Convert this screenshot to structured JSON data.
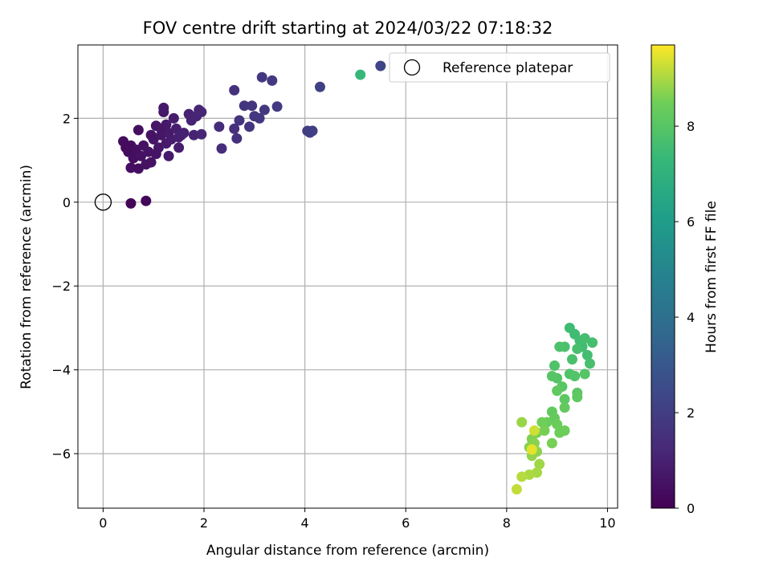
{
  "chart_data": {
    "type": "scatter",
    "title": "FOV centre drift starting at 2024/03/22 07:18:32",
    "xlabel": "Angular distance from reference (arcmin)",
    "ylabel": "Rotation from reference (arcmin)",
    "xlim": [
      -0.5,
      10.2
    ],
    "ylim": [
      -7.3,
      3.75
    ],
    "x_ticks": [
      0,
      2,
      4,
      6,
      8,
      10
    ],
    "y_ticks": [
      -6,
      -4,
      -2,
      0,
      2
    ],
    "grid": true,
    "legend": {
      "entries": [
        "Reference platepar"
      ],
      "placement": "top-right"
    },
    "colorbar": {
      "label": "Hours from first FF file",
      "colormap": "viridis",
      "range": [
        0,
        9.7
      ],
      "ticks": [
        0,
        2,
        4,
        6,
        8
      ]
    },
    "reference_point": {
      "x": 0,
      "y": 0
    },
    "series": [
      {
        "points": [
          {
            "x": 0.55,
            "y": -0.03,
            "c": 0.1
          },
          {
            "x": 0.85,
            "y": 0.03,
            "c": 0.15
          },
          {
            "x": 0.4,
            "y": 1.45,
            "c": 0.3
          },
          {
            "x": 0.45,
            "y": 1.3,
            "c": 0.3
          },
          {
            "x": 0.5,
            "y": 1.2,
            "c": 0.35
          },
          {
            "x": 0.55,
            "y": 1.35,
            "c": 0.35
          },
          {
            "x": 0.6,
            "y": 1.05,
            "c": 0.4
          },
          {
            "x": 0.65,
            "y": 1.25,
            "c": 0.4
          },
          {
            "x": 0.55,
            "y": 0.82,
            "c": 0.4
          },
          {
            "x": 0.7,
            "y": 0.8,
            "c": 0.45
          },
          {
            "x": 0.7,
            "y": 1.72,
            "c": 0.45
          },
          {
            "x": 0.75,
            "y": 1.1,
            "c": 0.5
          },
          {
            "x": 0.8,
            "y": 1.35,
            "c": 0.5
          },
          {
            "x": 0.85,
            "y": 0.9,
            "c": 0.5
          },
          {
            "x": 0.9,
            "y": 1.2,
            "c": 0.55
          },
          {
            "x": 0.95,
            "y": 0.95,
            "c": 0.55
          },
          {
            "x": 1.0,
            "y": 1.5,
            "c": 0.6
          },
          {
            "x": 1.05,
            "y": 1.82,
            "c": 0.6
          },
          {
            "x": 1.1,
            "y": 1.3,
            "c": 0.65
          },
          {
            "x": 1.15,
            "y": 1.6,
            "c": 0.65
          },
          {
            "x": 1.2,
            "y": 2.25,
            "c": 0.7
          },
          {
            "x": 1.2,
            "y": 2.15,
            "c": 0.7
          },
          {
            "x": 1.25,
            "y": 1.85,
            "c": 0.75
          },
          {
            "x": 1.25,
            "y": 1.4,
            "c": 0.75
          },
          {
            "x": 1.3,
            "y": 1.1,
            "c": 0.8
          },
          {
            "x": 1.3,
            "y": 1.65,
            "c": 0.8
          },
          {
            "x": 1.35,
            "y": 1.5,
            "c": 0.85
          },
          {
            "x": 1.4,
            "y": 2.0,
            "c": 0.85
          },
          {
            "x": 1.45,
            "y": 1.75,
            "c": 0.9
          },
          {
            "x": 1.5,
            "y": 1.3,
            "c": 0.9
          },
          {
            "x": 1.5,
            "y": 1.55,
            "c": 0.95
          },
          {
            "x": 1.55,
            "y": 1.6,
            "c": 0.95
          },
          {
            "x": 1.6,
            "y": 1.65,
            "c": 1.0
          },
          {
            "x": 1.7,
            "y": 2.1,
            "c": 1.0
          },
          {
            "x": 1.75,
            "y": 1.95,
            "c": 1.05
          },
          {
            "x": 1.8,
            "y": 1.6,
            "c": 1.05
          },
          {
            "x": 1.85,
            "y": 2.05,
            "c": 1.1
          },
          {
            "x": 1.9,
            "y": 2.2,
            "c": 1.1
          },
          {
            "x": 1.95,
            "y": 2.15,
            "c": 1.15
          },
          {
            "x": 1.95,
            "y": 1.62,
            "c": 1.15
          },
          {
            "x": 1.05,
            "y": 1.15,
            "c": 0.6
          },
          {
            "x": 0.95,
            "y": 1.6,
            "c": 0.55
          },
          {
            "x": 1.15,
            "y": 1.75,
            "c": 0.65
          },
          {
            "x": 2.3,
            "y": 1.8,
            "c": 1.4
          },
          {
            "x": 2.35,
            "y": 1.28,
            "c": 1.4
          },
          {
            "x": 2.6,
            "y": 1.75,
            "c": 1.5
          },
          {
            "x": 2.6,
            "y": 2.67,
            "c": 1.55
          },
          {
            "x": 2.65,
            "y": 1.52,
            "c": 1.55
          },
          {
            "x": 2.7,
            "y": 1.95,
            "c": 1.6
          },
          {
            "x": 2.8,
            "y": 2.3,
            "c": 1.65
          },
          {
            "x": 2.9,
            "y": 1.8,
            "c": 1.7
          },
          {
            "x": 2.95,
            "y": 2.3,
            "c": 1.7
          },
          {
            "x": 3.0,
            "y": 2.05,
            "c": 1.75
          },
          {
            "x": 3.1,
            "y": 2.0,
            "c": 1.75
          },
          {
            "x": 3.15,
            "y": 2.98,
            "c": 1.8
          },
          {
            "x": 3.2,
            "y": 2.2,
            "c": 1.8
          },
          {
            "x": 3.35,
            "y": 2.9,
            "c": 1.85
          },
          {
            "x": 3.45,
            "y": 2.28,
            "c": 1.85
          },
          {
            "x": 4.05,
            "y": 1.7,
            "c": 2.0
          },
          {
            "x": 4.1,
            "y": 1.66,
            "c": 2.05
          },
          {
            "x": 4.15,
            "y": 1.7,
            "c": 2.05
          },
          {
            "x": 4.3,
            "y": 2.75,
            "c": 2.1
          },
          {
            "x": 5.5,
            "y": 3.25,
            "c": 2.3
          },
          {
            "x": 5.1,
            "y": 3.04,
            "c": 7.3
          },
          {
            "x": 9.25,
            "y": -3.0,
            "c": 7.5
          },
          {
            "x": 9.35,
            "y": -3.15,
            "c": 7.5
          },
          {
            "x": 9.45,
            "y": -3.3,
            "c": 7.55
          },
          {
            "x": 9.5,
            "y": -3.45,
            "c": 7.55
          },
          {
            "x": 9.55,
            "y": -3.25,
            "c": 7.6
          },
          {
            "x": 9.6,
            "y": -3.65,
            "c": 7.6
          },
          {
            "x": 9.7,
            "y": -3.35,
            "c": 7.65
          },
          {
            "x": 9.65,
            "y": -3.85,
            "c": 7.7
          },
          {
            "x": 9.4,
            "y": -3.5,
            "c": 7.7
          },
          {
            "x": 9.3,
            "y": -3.75,
            "c": 7.75
          },
          {
            "x": 9.15,
            "y": -3.45,
            "c": 7.75
          },
          {
            "x": 9.05,
            "y": -3.45,
            "c": 7.8
          },
          {
            "x": 8.95,
            "y": -3.9,
            "c": 7.85
          },
          {
            "x": 9.25,
            "y": -4.1,
            "c": 7.85
          },
          {
            "x": 9.35,
            "y": -4.15,
            "c": 7.9
          },
          {
            "x": 9.55,
            "y": -4.1,
            "c": 7.95
          },
          {
            "x": 9.0,
            "y": -4.2,
            "c": 7.95
          },
          {
            "x": 8.9,
            "y": -4.15,
            "c": 8.0
          },
          {
            "x": 9.1,
            "y": -4.4,
            "c": 8.05
          },
          {
            "x": 9.15,
            "y": -4.7,
            "c": 8.1
          },
          {
            "x": 9.4,
            "y": -4.55,
            "c": 8.1
          },
          {
            "x": 9.4,
            "y": -4.65,
            "c": 8.15
          },
          {
            "x": 9.0,
            "y": -4.5,
            "c": 8.2
          },
          {
            "x": 8.9,
            "y": -5.0,
            "c": 8.2
          },
          {
            "x": 9.15,
            "y": -4.9,
            "c": 8.25
          },
          {
            "x": 8.95,
            "y": -5.15,
            "c": 8.3
          },
          {
            "x": 8.8,
            "y": -5.25,
            "c": 8.35
          },
          {
            "x": 9.0,
            "y": -5.3,
            "c": 8.4
          },
          {
            "x": 9.15,
            "y": -5.45,
            "c": 8.45
          },
          {
            "x": 9.05,
            "y": -5.5,
            "c": 8.45
          },
          {
            "x": 8.7,
            "y": -5.25,
            "c": 8.5
          },
          {
            "x": 8.75,
            "y": -5.45,
            "c": 8.55
          },
          {
            "x": 8.9,
            "y": -5.75,
            "c": 8.55
          },
          {
            "x": 8.6,
            "y": -5.5,
            "c": 8.6
          },
          {
            "x": 8.5,
            "y": -5.65,
            "c": 8.65
          },
          {
            "x": 8.45,
            "y": -5.85,
            "c": 8.7
          },
          {
            "x": 8.55,
            "y": -5.75,
            "c": 8.7
          },
          {
            "x": 8.6,
            "y": -5.95,
            "c": 8.75
          },
          {
            "x": 8.5,
            "y": -6.05,
            "c": 8.8
          },
          {
            "x": 8.3,
            "y": -5.25,
            "c": 8.85
          },
          {
            "x": 8.65,
            "y": -6.25,
            "c": 8.9
          },
          {
            "x": 8.6,
            "y": -6.45,
            "c": 8.95
          },
          {
            "x": 8.45,
            "y": -6.5,
            "c": 9.0
          },
          {
            "x": 8.3,
            "y": -6.55,
            "c": 9.1
          },
          {
            "x": 8.2,
            "y": -6.85,
            "c": 9.2
          },
          {
            "x": 8.55,
            "y": -5.45,
            "c": 9.3
          },
          {
            "x": 8.5,
            "y": -5.9,
            "c": 9.5
          }
        ]
      }
    ]
  }
}
